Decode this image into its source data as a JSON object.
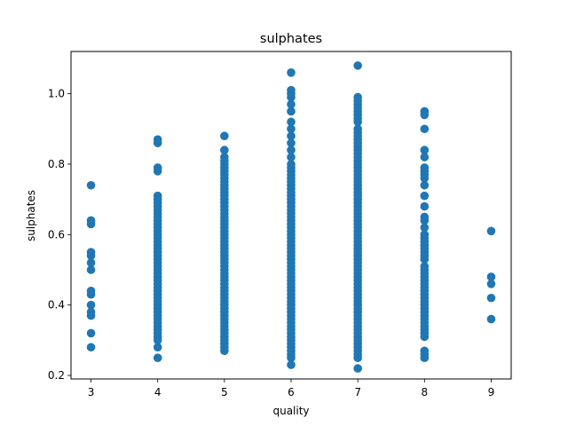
{
  "chart_data": {
    "type": "scatter",
    "title": "sulphates",
    "xlabel": "quality",
    "ylabel": "sulphates",
    "xlim": [
      2.7,
      9.3
    ],
    "ylim": [
      0.19,
      1.12
    ],
    "xticks": [
      3,
      4,
      5,
      6,
      7,
      8,
      9
    ],
    "xtick_labels": [
      "3",
      "4",
      "5",
      "6",
      "7",
      "8",
      "9"
    ],
    "yticks": [
      0.2,
      0.4,
      0.6,
      0.8,
      1.0
    ],
    "ytick_labels": [
      "0.2",
      "0.4",
      "0.6",
      "0.8",
      "1.0"
    ],
    "grid": false,
    "legend": "none",
    "marker_color": "#1f77b4",
    "series": [
      {
        "groups": [
          {
            "x": 3,
            "y": [
              0.28,
              0.32,
              0.37,
              0.38,
              0.4,
              0.43,
              0.44,
              0.5,
              0.52,
              0.54,
              0.55,
              0.63,
              0.64,
              0.74
            ]
          },
          {
            "x": 4,
            "y": [
              0.25,
              0.28,
              0.3,
              0.31,
              0.32,
              0.33,
              0.34,
              0.35,
              0.36,
              0.37,
              0.38,
              0.39,
              0.4,
              0.41,
              0.42,
              0.43,
              0.44,
              0.45,
              0.46,
              0.47,
              0.48,
              0.49,
              0.5,
              0.51,
              0.52,
              0.53,
              0.54,
              0.55,
              0.56,
              0.57,
              0.58,
              0.59,
              0.6,
              0.61,
              0.62,
              0.63,
              0.64,
              0.65,
              0.66,
              0.67,
              0.68,
              0.69,
              0.7,
              0.71,
              0.78,
              0.79,
              0.86,
              0.87
            ]
          },
          {
            "x": 5,
            "y": [
              0.27,
              0.28,
              0.29,
              0.3,
              0.31,
              0.32,
              0.33,
              0.34,
              0.35,
              0.36,
              0.37,
              0.38,
              0.39,
              0.4,
              0.41,
              0.42,
              0.43,
              0.44,
              0.45,
              0.46,
              0.47,
              0.48,
              0.49,
              0.5,
              0.51,
              0.52,
              0.53,
              0.54,
              0.55,
              0.56,
              0.57,
              0.58,
              0.59,
              0.6,
              0.61,
              0.62,
              0.63,
              0.64,
              0.65,
              0.66,
              0.67,
              0.68,
              0.69,
              0.7,
              0.71,
              0.72,
              0.73,
              0.74,
              0.75,
              0.76,
              0.77,
              0.78,
              0.79,
              0.8,
              0.81,
              0.82,
              0.84,
              0.88
            ]
          },
          {
            "x": 6,
            "y": [
              0.23,
              0.25,
              0.26,
              0.27,
              0.28,
              0.29,
              0.3,
              0.31,
              0.32,
              0.33,
              0.34,
              0.35,
              0.36,
              0.37,
              0.38,
              0.39,
              0.4,
              0.41,
              0.42,
              0.43,
              0.44,
              0.45,
              0.46,
              0.47,
              0.48,
              0.49,
              0.5,
              0.51,
              0.52,
              0.53,
              0.54,
              0.55,
              0.56,
              0.57,
              0.58,
              0.59,
              0.6,
              0.61,
              0.62,
              0.63,
              0.64,
              0.65,
              0.66,
              0.67,
              0.68,
              0.69,
              0.7,
              0.71,
              0.72,
              0.73,
              0.74,
              0.75,
              0.76,
              0.77,
              0.78,
              0.79,
              0.8,
              0.82,
              0.84,
              0.86,
              0.88,
              0.9,
              0.92,
              0.95,
              0.97,
              0.99,
              1.0,
              1.01,
              1.06
            ]
          },
          {
            "x": 7,
            "y": [
              0.22,
              0.25,
              0.26,
              0.27,
              0.28,
              0.29,
              0.3,
              0.31,
              0.32,
              0.33,
              0.34,
              0.35,
              0.36,
              0.37,
              0.38,
              0.39,
              0.4,
              0.41,
              0.42,
              0.43,
              0.44,
              0.45,
              0.46,
              0.47,
              0.48,
              0.49,
              0.5,
              0.51,
              0.52,
              0.53,
              0.54,
              0.55,
              0.56,
              0.57,
              0.58,
              0.59,
              0.6,
              0.61,
              0.62,
              0.63,
              0.64,
              0.65,
              0.66,
              0.67,
              0.68,
              0.69,
              0.7,
              0.71,
              0.72,
              0.73,
              0.74,
              0.75,
              0.76,
              0.77,
              0.78,
              0.79,
              0.8,
              0.81,
              0.82,
              0.83,
              0.84,
              0.85,
              0.86,
              0.87,
              0.88,
              0.89,
              0.9,
              0.92,
              0.93,
              0.94,
              0.95,
              0.96,
              0.97,
              0.98,
              0.99,
              1.08
            ]
          },
          {
            "x": 8,
            "y": [
              0.25,
              0.26,
              0.27,
              0.31,
              0.32,
              0.33,
              0.34,
              0.35,
              0.36,
              0.37,
              0.38,
              0.39,
              0.4,
              0.41,
              0.42,
              0.43,
              0.44,
              0.45,
              0.46,
              0.47,
              0.48,
              0.49,
              0.5,
              0.51,
              0.53,
              0.54,
              0.55,
              0.56,
              0.57,
              0.58,
              0.59,
              0.6,
              0.62,
              0.64,
              0.65,
              0.68,
              0.71,
              0.74,
              0.76,
              0.77,
              0.78,
              0.79,
              0.82,
              0.84,
              0.9,
              0.94,
              0.95
            ]
          },
          {
            "x": 9,
            "y": [
              0.36,
              0.42,
              0.46,
              0.48,
              0.61
            ]
          }
        ]
      }
    ]
  }
}
